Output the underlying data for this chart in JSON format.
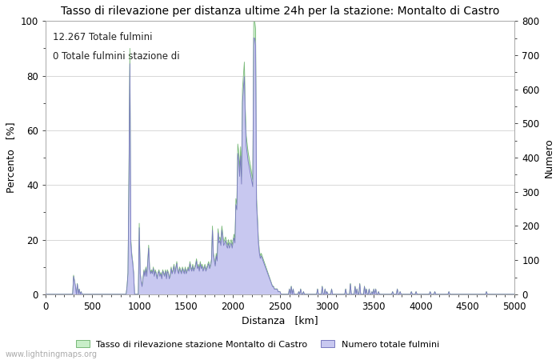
{
  "title": "Tasso di rilevazione per distanza ultime 24h per la stazione: Montalto di Castro",
  "xlabel": "Distanza   [km]",
  "ylabel_left": "Percento   [%]",
  "ylabel_right": "Numero",
  "annotation_line1": "12.267 Totale fulmini",
  "annotation_line2": "0 Totale fulmini stazione di",
  "watermark": "www.lightningmaps.org",
  "legend_label1": "Tasso di rilevazione stazione Montalto di Castro",
  "legend_label2": "Numero totale fulmini",
  "xlim": [
    0,
    5000
  ],
  "ylim_left": [
    0,
    100
  ],
  "ylim_right": [
    0,
    800
  ],
  "xticks": [
    0,
    500,
    1000,
    1500,
    2000,
    2500,
    3000,
    3500,
    4000,
    4500,
    5000
  ],
  "yticks_left": [
    0,
    20,
    40,
    60,
    80,
    100
  ],
  "yticks_right": [
    0,
    100,
    200,
    300,
    400,
    500,
    600,
    700,
    800
  ],
  "fill_color_blue": "#c8c8f0",
  "fill_color_green": "#c8eec8",
  "line_color_blue": "#7878c0",
  "line_color_green": "#78b878",
  "bg_color": "#ffffff",
  "grid_color": "#c8c8c8",
  "title_fontsize": 10,
  "label_fontsize": 9,
  "tick_fontsize": 8.5,
  "annotation_fontsize": 8.5
}
